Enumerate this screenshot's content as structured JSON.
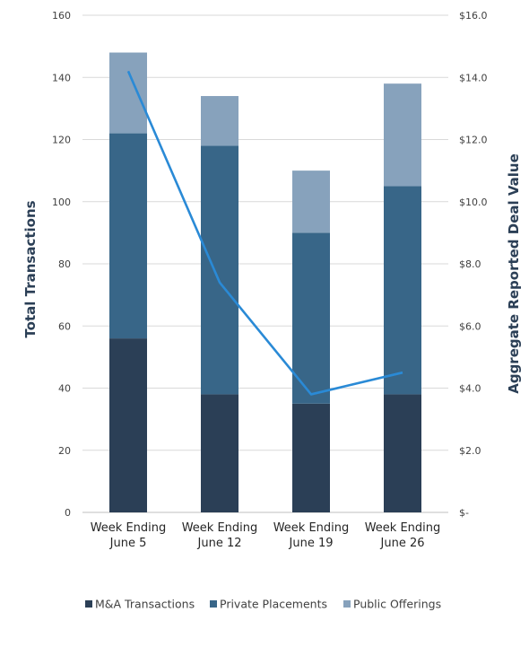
{
  "chart_data": {
    "type": "bar",
    "stacked": true,
    "categories": [
      [
        "Week Ending",
        "June 5"
      ],
      [
        "Week Ending",
        "June 12"
      ],
      [
        "Week Ending",
        "June 19"
      ],
      [
        "Week Ending",
        "June 26"
      ]
    ],
    "series": [
      {
        "name": "M&A Transactions",
        "type": "bar",
        "axis": "left",
        "color": "#2b3f56",
        "values": [
          56,
          38,
          35,
          38
        ]
      },
      {
        "name": "Private Placements",
        "type": "bar",
        "axis": "left",
        "color": "#386688",
        "values": [
          66,
          80,
          55,
          67
        ]
      },
      {
        "name": "Public Offerings",
        "type": "bar",
        "axis": "left",
        "color": "#87a2bc",
        "values": [
          26,
          16,
          20,
          33
        ]
      }
    ],
    "line": {
      "axis": "right",
      "color": "#2a8ad6",
      "values": [
        14.2,
        7.4,
        3.8,
        4.5
      ]
    },
    "ylabel": "Total Transactions",
    "y2label": "Aggregate Reported Deal Value",
    "ylim": [
      0,
      160
    ],
    "y2lim": [
      0,
      16
    ],
    "yticks": [
      "0",
      "20",
      "40",
      "60",
      "80",
      "100",
      "120",
      "140",
      "160"
    ],
    "y2ticks": [
      "$-",
      "$2.0",
      "$4.0",
      "$6.0",
      "$8.0",
      "$10.0",
      "$12.0",
      "$14.0",
      "$16.0"
    ],
    "grid": true,
    "legend_position": "bottom"
  }
}
